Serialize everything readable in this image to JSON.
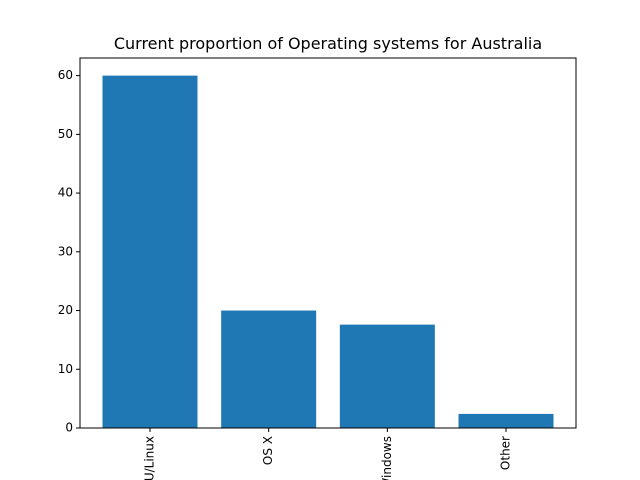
{
  "chart_data": {
    "type": "bar",
    "title": "Current proportion of Operating systems for Australia",
    "xlabel": "",
    "ylabel": "",
    "categories": [
      "GNU/Linux",
      "OS X",
      "Windows",
      "Other"
    ],
    "visible_tick_labels": [
      "/Linux",
      "OS X",
      "ndows",
      "Other"
    ],
    "values": [
      60,
      20,
      17.6,
      2.4
    ],
    "ylim": [
      0,
      63
    ],
    "yticks": [
      0,
      10,
      20,
      30,
      40,
      50,
      60
    ],
    "bar_color": "#1f77b4",
    "grid": false,
    "legend": "none",
    "x_tick_rotation": "vertical"
  }
}
